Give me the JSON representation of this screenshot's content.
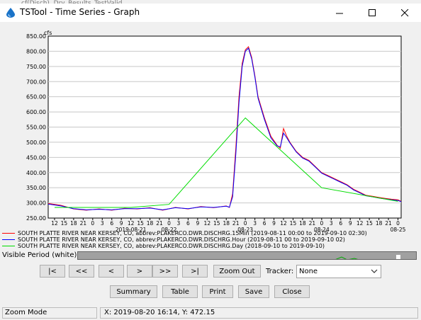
{
  "window": {
    "title": "TSTool - Time Series - Graph",
    "bg_hint": "cf(Disch), Dry_Results_TestValid..."
  },
  "chart_data": {
    "type": "line",
    "ylabel": "cfs",
    "ylim": [
      250,
      850
    ],
    "yticks": [
      "250.00",
      "300.00",
      "350.00",
      "400.00",
      "450.00",
      "500.00",
      "550.00",
      "600.00",
      "650.00",
      "700.00",
      "750.00",
      "800.00",
      "850.00"
    ],
    "xlim_hours": [
      10,
      121
    ],
    "x_hour_ticks": [
      "12",
      "15",
      "18",
      "21",
      "0",
      "3",
      "6",
      "9",
      "12",
      "15",
      "18",
      "21",
      "0",
      "3",
      "6",
      "9",
      "12",
      "15",
      "18",
      "21",
      "0",
      "3",
      "6",
      "9",
      "12",
      "15",
      "18",
      "21",
      "0",
      "3",
      "6",
      "9",
      "12",
      "15",
      "18",
      "21",
      "0"
    ],
    "x_date_labels": [
      {
        "label": "2019-08-21",
        "at_hour": 36
      },
      {
        "label": "08-22",
        "at_hour": 48
      },
      {
        "label": "08-23",
        "at_hour": 72
      },
      {
        "label": "08-24",
        "at_hour": 96
      },
      {
        "label": "08-25",
        "at_hour": 120
      }
    ],
    "series": [
      {
        "name": "SOUTH PLATTE RIVER NEAR KERSEY, CO, abbrev:PLAKERCO.DWR.DISCHRG.15Min (2019-08-11 00:00 to 2019-09-10 02:30)",
        "color": "#ff0000",
        "x": [
          10,
          14,
          18,
          22,
          26,
          30,
          34,
          38,
          42,
          46,
          50,
          54,
          58,
          62,
          66,
          67,
          68,
          69,
          70,
          71,
          72,
          73,
          74,
          75,
          76,
          78,
          80,
          82,
          83,
          84,
          85,
          86,
          88,
          90,
          92,
          94,
          96,
          98,
          100,
          102,
          104,
          106,
          108,
          110,
          112,
          114,
          116,
          118,
          120,
          121
        ],
        "y": [
          298,
          292,
          280,
          276,
          280,
          276,
          282,
          280,
          284,
          276,
          285,
          280,
          288,
          284,
          290,
          285,
          330,
          480,
          650,
          760,
          805,
          815,
          780,
          720,
          650,
          580,
          520,
          490,
          480,
          545,
          520,
          500,
          470,
          450,
          440,
          420,
          400,
          390,
          380,
          370,
          360,
          345,
          335,
          325,
          322,
          318,
          315,
          312,
          310,
          305
        ]
      },
      {
        "name": "SOUTH PLATTE RIVER NEAR KERSEY, CO, abbrev:PLAKERCO.DWR.DISCHRG.Hour (2019-08-11 00 to 2019-09-10 02)",
        "color": "#0000ff",
        "x": [
          10,
          14,
          18,
          22,
          26,
          30,
          34,
          38,
          42,
          46,
          50,
          54,
          58,
          62,
          66,
          67,
          68,
          69,
          70,
          71,
          72,
          73,
          74,
          75,
          76,
          78,
          80,
          82,
          83,
          84,
          85,
          86,
          88,
          90,
          92,
          94,
          96,
          98,
          100,
          102,
          104,
          106,
          108,
          110,
          112,
          114,
          116,
          118,
          120,
          121
        ],
        "y": [
          296,
          290,
          281,
          277,
          279,
          277,
          281,
          281,
          283,
          277,
          284,
          281,
          287,
          285,
          289,
          286,
          320,
          460,
          630,
          750,
          800,
          810,
          775,
          715,
          645,
          575,
          515,
          488,
          485,
          530,
          515,
          498,
          468,
          448,
          438,
          418,
          398,
          388,
          378,
          368,
          358,
          343,
          333,
          323,
          320,
          316,
          313,
          310,
          308,
          304
        ]
      },
      {
        "name": "SOUTH PLATTE RIVER NEAR KERSEY, CO, abbrev:PLAKERCO.DWR.DISCHRG.Day (2018-09-10 to 2019-09-10)",
        "color": "#00dd00",
        "x": [
          12,
          36,
          48,
          72,
          96,
          120
        ],
        "y": [
          285,
          285,
          295,
          580,
          350,
          305
        ]
      }
    ]
  },
  "visible_period": {
    "label": "Visible Period (white):"
  },
  "nav": {
    "first": "|<",
    "prev_page": "<<",
    "prev": "<",
    "next": ">",
    "next_page": ">>",
    "last": ">|",
    "zoom_out": "Zoom Out"
  },
  "tracker": {
    "label": "Tracker:",
    "value": "None"
  },
  "actions": {
    "summary": "Summary",
    "table": "Table",
    "print": "Print",
    "save": "Save",
    "close": "Close"
  },
  "status": {
    "mode": "Zoom Mode",
    "xy": "X:  2019-08-20 16:14,  Y:  472.15"
  },
  "colors": {
    "accent_drop": "#1a73c8",
    "grid": "#c8c8c8"
  }
}
